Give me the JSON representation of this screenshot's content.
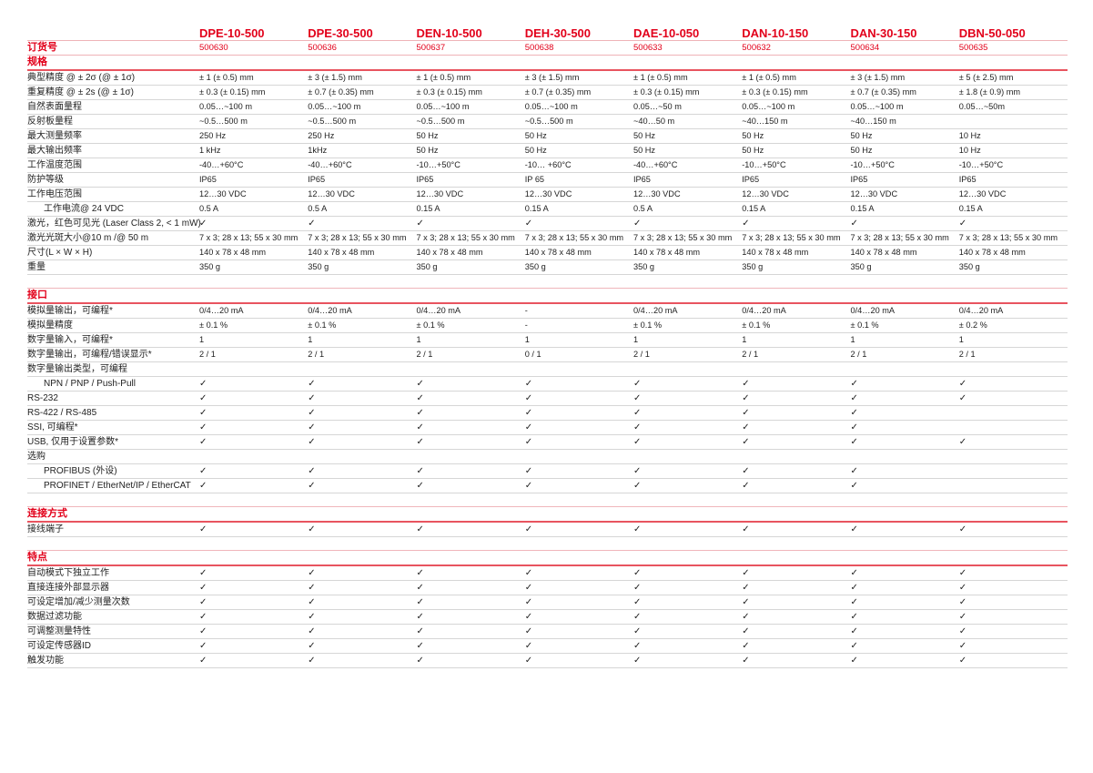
{
  "models": [
    "DPE-10-500",
    "DPE-30-500",
    "DEN-10-500",
    "DEH-30-500",
    "DAE-10-050",
    "DAN-10-150",
    "DAN-30-150",
    "DBN-50-050"
  ],
  "order_label": "订货号",
  "order_numbers": [
    "500630",
    "500636",
    "500637",
    "500638",
    "500633",
    "500632",
    "500634",
    "500635"
  ],
  "accent_color": "#e2001a",
  "check_icon": "checkmark",
  "sections": [
    {
      "title": "规格",
      "rows": [
        {
          "label": "典型精度 @ ± 2σ (@ ± 1σ)",
          "cells": [
            "± 1 (± 0.5) mm",
            "± 3 (± 1.5) mm",
            "± 1 (± 0.5) mm",
            "± 3 (± 1.5) mm",
            "± 1 (± 0.5) mm",
            "± 1 (± 0.5) mm",
            "± 3 (± 1.5) mm",
            "± 5 (± 2.5) mm"
          ]
        },
        {
          "label": "重复精度 @ ± 2s (@ ± 1σ)",
          "cells": [
            "± 0.3 (± 0.15) mm",
            "± 0.7 (± 0.35) mm",
            "± 0.3 (± 0.15) mm",
            "± 0.7 (± 0.35) mm",
            "± 0.3 (± 0.15) mm",
            "± 0.3 (± 0.15) mm",
            "± 0.7 (± 0.35) mm",
            "± 1.8 (± 0.9) mm"
          ]
        },
        {
          "label": "自然表面量程",
          "cells": [
            "0.05…~100 m",
            "0.05…~100 m",
            "0.05…~100 m",
            "0.05…~100 m",
            "0.05…~50 m",
            "0.05…~100 m",
            "0.05…~100 m",
            "0.05…~50m"
          ]
        },
        {
          "label": "反射板量程",
          "cells": [
            " ~0.5…500 m",
            " ~0.5…500 m",
            " ~0.5…500 m",
            " ~0.5…500 m",
            "~40…50 m",
            "~40…150 m",
            "~40…150 m",
            ""
          ]
        },
        {
          "label": "最大测量频率",
          "cells": [
            "250 Hz",
            "250 Hz",
            "50 Hz",
            "50 Hz",
            "50 Hz",
            "50 Hz",
            "50 Hz",
            "10 Hz"
          ]
        },
        {
          "label": "最大输出频率",
          "cells": [
            "1 kHz",
            "1kHz",
            "50 Hz",
            "50 Hz",
            "50 Hz",
            "50 Hz",
            "50 Hz",
            "10 Hz"
          ]
        },
        {
          "label": "工作温度范围",
          "cells": [
            "-40…+60°C",
            "-40…+60°C",
            "-10…+50°C",
            "-10… +60°C",
            "-40…+60°C",
            "-10…+50°C",
            "-10…+50°C",
            "-10…+50°C"
          ]
        },
        {
          "label": "防护等级",
          "cells": [
            "IP65",
            "IP65",
            "IP65",
            "IP 65",
            "IP65",
            "IP65",
            "IP65",
            "IP65"
          ]
        },
        {
          "label": "工作电压范围",
          "cells": [
            "12…30 VDC",
            "12…30 VDC",
            "12…30 VDC",
            "12…30 VDC",
            "12…30 VDC",
            "12…30 VDC",
            "12…30 VDC",
            "12…30 VDC"
          ]
        },
        {
          "label": "工作电流@ 24 VDC",
          "indent": true,
          "cells": [
            "0.5 A",
            "0.5 A",
            "0.15 A",
            "0.15 A",
            "0.5 A",
            "0.15 A",
            "0.15 A",
            "0.15 A"
          ]
        },
        {
          "label": "激光，红色可见光 (Laser Class 2, < 1 mW)",
          "cells": [
            "✓",
            "✓",
            "✓",
            "✓",
            "✓",
            "✓",
            "✓",
            "✓"
          ]
        },
        {
          "label": "激光光斑大小@10 m /@ 50 m",
          "cells": [
            "7 x 3; 28 x 13; 55 x 30 mm",
            "7 x 3; 28 x 13; 55 x 30 mm",
            "7 x 3; 28 x 13; 55 x 30 mm",
            "7 x 3; 28 x 13; 55 x 30 mm",
            "7 x 3; 28 x 13; 55 x 30 mm",
            "7 x 3; 28 x 13; 55 x 30 mm",
            "7 x 3; 28 x 13; 55 x 30 mm",
            "7 x 3; 28 x 13; 55 x 30 mm"
          ]
        },
        {
          "label": "尺寸(L × W × H)",
          "cells": [
            "140 x 78 x 48 mm",
            "140 x 78 x 48 mm",
            "140 x 78 x 48 mm",
            "140 x 78 x 48 mm",
            "140 x 78 x 48 mm",
            "140 x 78 x 48 mm",
            "140 x 78 x 48 mm",
            "140 x 78 x 48 mm"
          ]
        },
        {
          "label": "重量",
          "cells": [
            "350 g",
            "350 g",
            "350 g",
            "350 g",
            "350 g",
            "350 g",
            "350 g",
            "350 g"
          ]
        }
      ]
    },
    {
      "title": "接口",
      "rows": [
        {
          "label": "模拟量输出，可编程*",
          "cells": [
            "0/4…20 mA",
            "0/4…20 mA",
            "0/4…20 mA",
            "-",
            "0/4…20 mA",
            "0/4…20 mA",
            "0/4…20 mA",
            "0/4…20 mA"
          ]
        },
        {
          "label": "模拟量精度",
          "cells": [
            "± 0.1 %",
            "± 0.1 %",
            "± 0.1 %",
            "-",
            "± 0.1 %",
            "± 0.1 %",
            "± 0.1 %",
            "± 0.2 %"
          ]
        },
        {
          "label": "数字量输入，可编程*",
          "cells": [
            "1",
            "1",
            "1",
            "1",
            "1",
            "1",
            "1",
            "1"
          ]
        },
        {
          "label": "数字量输出，可编程/错误显示*",
          "cells": [
            "2 / 1",
            "2 / 1",
            "2 / 1",
            "0 / 1",
            "2 / 1",
            "2 / 1",
            "2 / 1",
            "2 / 1"
          ]
        },
        {
          "label": "数字量输出类型，可编程",
          "cells": [
            "",
            "",
            "",
            "",
            "",
            "",
            "",
            ""
          ]
        },
        {
          "label": "NPN / PNP / Push-Pull",
          "indent": true,
          "cells": [
            "✓",
            "✓",
            "✓",
            "✓",
            "✓",
            "✓",
            "✓",
            "✓"
          ]
        },
        {
          "label": "RS-232",
          "cells": [
            "✓",
            "✓",
            "✓",
            "✓",
            "✓",
            "✓",
            "✓",
            "✓"
          ]
        },
        {
          "label": "RS-422 / RS-485",
          "cells": [
            "✓",
            "✓",
            "✓",
            "✓",
            "✓",
            "✓",
            "✓",
            ""
          ]
        },
        {
          "label": "SSI, 可编程*",
          "cells": [
            "✓",
            "✓",
            "✓",
            "✓",
            "✓",
            "✓",
            "✓",
            ""
          ]
        },
        {
          "label": "USB, 仅用于设置参数*",
          "cells": [
            "✓",
            "✓",
            "✓",
            "✓",
            "✓",
            "✓",
            "✓",
            "✓"
          ]
        },
        {
          "label": "选购",
          "cells": [
            "",
            "",
            "",
            "",
            "",
            "",
            "",
            ""
          ]
        },
        {
          "label": "PROFIBUS (外设)",
          "indent": true,
          "cells": [
            "✓",
            "✓",
            "✓",
            "✓",
            "✓",
            "✓",
            "✓",
            ""
          ]
        },
        {
          "label": "PROFINET / EtherNet/IP / EtherCAT",
          "indent": true,
          "cells": [
            "✓",
            "✓",
            "✓",
            "✓",
            "✓",
            "✓",
            "✓",
            ""
          ]
        }
      ]
    },
    {
      "title": "连接方式",
      "rows": [
        {
          "label": "接线端子",
          "cells": [
            "✓",
            "✓",
            "✓",
            "✓",
            "✓",
            "✓",
            "✓",
            "✓"
          ]
        }
      ]
    },
    {
      "title": "特点",
      "rows": [
        {
          "label": "自动模式下独立工作",
          "cells": [
            "✓",
            "✓",
            "✓",
            "✓",
            "✓",
            "✓",
            "✓",
            "✓"
          ]
        },
        {
          "label": "直接连接外部显示器",
          "cells": [
            "✓",
            "✓",
            "✓",
            "✓",
            "✓",
            "✓",
            "✓",
            "✓"
          ]
        },
        {
          "label": "可设定增加/减少测量次数",
          "cells": [
            "✓",
            "✓",
            "✓",
            "✓",
            "✓",
            "✓",
            "✓",
            "✓"
          ]
        },
        {
          "label": "数据过滤功能",
          "cells": [
            "✓",
            "✓",
            "✓",
            "✓",
            "✓",
            "✓",
            "✓",
            "✓"
          ]
        },
        {
          "label": "可调整测量特性",
          "cells": [
            "✓",
            "✓",
            "✓",
            "✓",
            "✓",
            "✓",
            "✓",
            "✓"
          ]
        },
        {
          "label": "可设定传感器ID",
          "cells": [
            "✓",
            "✓",
            "✓",
            "✓",
            "✓",
            "✓",
            "✓",
            "✓"
          ]
        },
        {
          "label": "触发功能",
          "cells": [
            "✓",
            "✓",
            "✓",
            "✓",
            "✓",
            "✓",
            "✓",
            "✓"
          ]
        }
      ]
    }
  ]
}
